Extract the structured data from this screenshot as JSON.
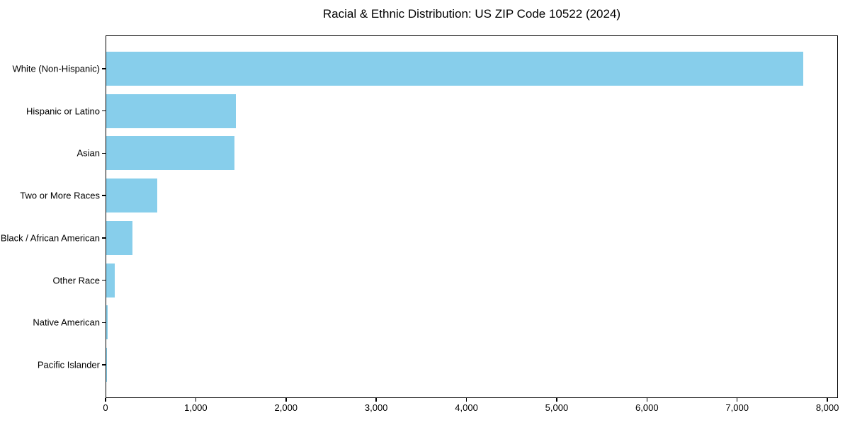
{
  "figure": {
    "background": "#ffffff"
  },
  "chart_data": {
    "type": "bar",
    "orientation": "horizontal",
    "title": "Racial & Ethnic Distribution: US ZIP Code 10522 (2024)",
    "categories": [
      "White (Non-Hispanic)",
      "Hispanic or Latino",
      "Asian",
      "Two or More Races",
      "Black / African American",
      "Other Race",
      "Native American",
      "Pacific Islander"
    ],
    "values": [
      7725,
      1440,
      1420,
      565,
      290,
      95,
      15,
      5
    ],
    "xlabel": "",
    "ylabel": "",
    "xlim": [
      0,
      8117
    ],
    "x_ticks": [
      0,
      1000,
      2000,
      3000,
      4000,
      5000,
      6000,
      7000,
      8000
    ],
    "x_tick_labels": [
      "0",
      "1,000",
      "2,000",
      "3,000",
      "4,000",
      "5,000",
      "6,000",
      "7,000",
      "8,000"
    ],
    "bar_color": "#87CEEB",
    "axis_color": "#000000",
    "text_color": "#000000",
    "grid": false,
    "legend": null
  }
}
